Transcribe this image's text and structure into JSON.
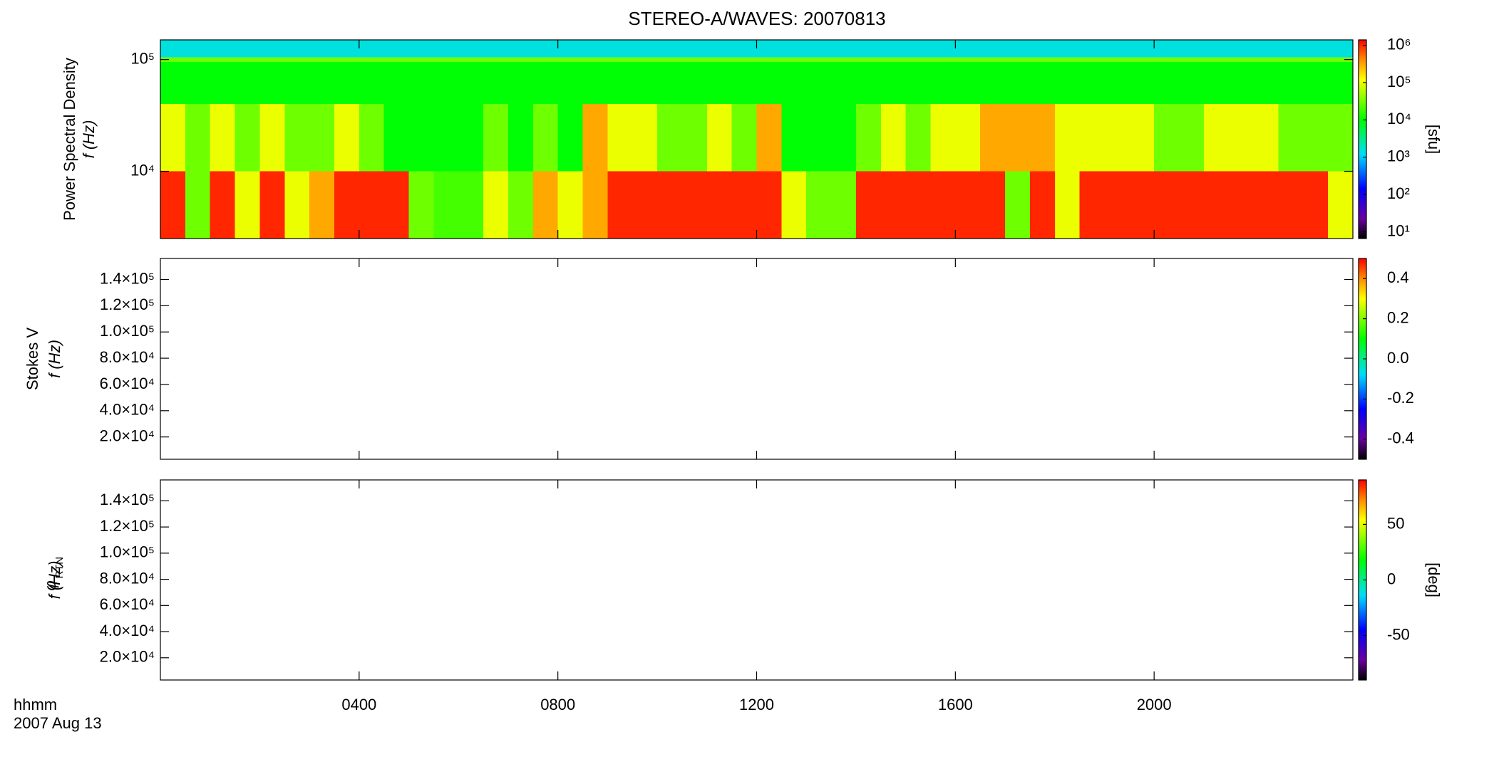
{
  "chart_data": {
    "type": "heatmap",
    "title": "STEREO-A/WAVES: 20070813",
    "x_label": "hhmm",
    "date_label": "2007 Aug 13",
    "xlim": [
      0,
      24
    ],
    "xticks": [
      {
        "value": 4,
        "label": "0400"
      },
      {
        "value": 8,
        "label": "0800"
      },
      {
        "value": 12,
        "label": "1200"
      },
      {
        "value": 16,
        "label": "1600"
      },
      {
        "value": 20,
        "label": "2000"
      }
    ],
    "panels": [
      {
        "type": "heatmap",
        "ylabel": "Power Spectral Density",
        "ylabel2": "f (Hz)",
        "ylog": true,
        "ylim": [
          2500,
          150000
        ],
        "yticks": [
          {
            "value": 10000,
            "label": "10⁴"
          },
          {
            "value": 100000,
            "label": "10⁵"
          }
        ],
        "xbins": [
          0,
          0.5,
          1,
          1.5,
          2,
          2.5,
          3,
          3.5,
          4,
          4.5,
          5,
          5.5,
          6,
          6.5,
          7,
          7.5,
          8,
          8.5,
          9,
          9.5,
          10,
          10.5,
          11,
          11.5,
          12,
          12.5,
          13,
          13.5,
          14,
          14.5,
          15,
          15.5,
          16,
          16.5,
          17,
          17.5,
          18,
          18.5,
          19,
          19.5,
          20,
          20.5,
          21,
          21.5,
          22,
          22.5,
          23,
          23.5,
          24
        ],
        "ybins": [
          2500,
          10000,
          40000,
          95000,
          105000,
          150000
        ],
        "z": [
          [
            1000000,
            30000,
            1000000,
            100000,
            1000000,
            100000,
            300000,
            1000000,
            1000000,
            1000000,
            30000,
            20000,
            20000,
            100000,
            30000,
            300000,
            100000,
            300000,
            1000000,
            1000000,
            1000000,
            1000000,
            1000000,
            1000000,
            1000000,
            100000,
            30000,
            30000,
            1000000,
            1000000,
            1000000,
            1000000,
            1000000,
            1000000,
            30000,
            1000000,
            100000,
            1000000,
            1000000,
            1000000,
            1000000,
            1000000,
            1000000,
            1000000,
            1000000,
            1000000,
            1000000,
            100000
          ],
          [
            100000,
            30000,
            100000,
            30000,
            100000,
            30000,
            30000,
            100000,
            30000,
            10000,
            10000,
            10000,
            10000,
            30000,
            10000,
            30000,
            10000,
            300000,
            100000,
            100000,
            30000,
            30000,
            100000,
            30000,
            300000,
            10000,
            10000,
            10000,
            30000,
            100000,
            30000,
            100000,
            100000,
            300000,
            300000,
            300000,
            100000,
            100000,
            100000,
            100000,
            30000,
            30000,
            100000,
            100000,
            100000,
            30000,
            30000,
            30000
          ],
          [
            10000,
            10000,
            10000,
            10000,
            10000,
            10000,
            10000,
            10000,
            10000,
            10000,
            10000,
            10000,
            10000,
            10000,
            10000,
            10000,
            10000,
            10000,
            10000,
            10000,
            10000,
            10000,
            10000,
            10000,
            10000,
            10000,
            10000,
            10000,
            10000,
            10000,
            10000,
            10000,
            10000,
            10000,
            10000,
            10000,
            10000,
            10000,
            10000,
            10000,
            10000,
            10000,
            10000,
            10000,
            10000,
            10000,
            10000,
            10000
          ],
          [
            30000,
            30000,
            30000,
            30000,
            30000,
            30000,
            30000,
            30000,
            30000,
            30000,
            30000,
            30000,
            30000,
            30000,
            30000,
            30000,
            30000,
            30000,
            30000,
            30000,
            30000,
            30000,
            30000,
            30000,
            30000,
            30000,
            30000,
            30000,
            30000,
            30000,
            30000,
            30000,
            30000,
            30000,
            30000,
            30000,
            30000,
            30000,
            30000,
            30000,
            30000,
            30000,
            30000,
            30000,
            30000,
            30000,
            30000,
            30000
          ],
          [
            1500,
            1500,
            1500,
            1500,
            1500,
            1500,
            1500,
            1500,
            1500,
            1500,
            1500,
            1500,
            1500,
            1500,
            1500,
            1500,
            1500,
            1500,
            1500,
            1500,
            1500,
            1500,
            1500,
            1500,
            1500,
            1500,
            1500,
            1500,
            1500,
            1500,
            1500,
            1500,
            1500,
            1500,
            1500,
            1500,
            1500,
            1500,
            1500,
            1500,
            1500,
            1500,
            1500,
            1500,
            1500,
            1500,
            1500,
            1500
          ]
        ],
        "zlog": true,
        "zlim": [
          6.6,
          1400000
        ],
        "zticks": [
          {
            "value": 10,
            "label": "10¹"
          },
          {
            "value": 100,
            "label": "10²"
          },
          {
            "value": 1000,
            "label": "10³"
          },
          {
            "value": 10000,
            "label": "10⁴"
          },
          {
            "value": 100000,
            "label": "10⁵"
          },
          {
            "value": 1000000,
            "label": "10⁶"
          }
        ],
        "zlabel": "[sfu]"
      },
      {
        "type": "heatmap",
        "ylabel": "Stokes V",
        "ylabel2": "f (Hz)",
        "ylog": false,
        "ylim": [
          3000,
          156000
        ],
        "yticks": [
          {
            "value": 20000,
            "label": "2.0×10⁴"
          },
          {
            "value": 40000,
            "label": "4.0×10⁴"
          },
          {
            "value": 60000,
            "label": "6.0×10⁴"
          },
          {
            "value": 80000,
            "label": "8.0×10⁴"
          },
          {
            "value": 100000,
            "label": "1.0×10⁵"
          },
          {
            "value": 120000,
            "label": "1.2×10⁵"
          },
          {
            "value": 140000,
            "label": "1.4×10⁵"
          }
        ],
        "zlog": false,
        "zlim": [
          -0.5,
          0.5
        ],
        "zticks": [
          -0.4,
          -0.2,
          {
            "value": 0,
            "label": "0.0"
          },
          0.2,
          0.4
        ]
      },
      {
        "type": "heatmap",
        "ylabel": "φ",
        "ylabel_sub": "RTN",
        "ylabel2": "f (Hz)",
        "ylog": false,
        "ylim": [
          3000,
          156000
        ],
        "yticks": [
          {
            "value": 20000,
            "label": "2.0×10⁴"
          },
          {
            "value": 40000,
            "label": "4.0×10⁴"
          },
          {
            "value": 60000,
            "label": "6.0×10⁴"
          },
          {
            "value": 80000,
            "label": "8.0×10⁴"
          },
          {
            "value": 100000,
            "label": "1.0×10⁵"
          },
          {
            "value": 120000,
            "label": "1.2×10⁵"
          },
          {
            "value": 140000,
            "label": "1.4×10⁵"
          }
        ],
        "zlog": false,
        "zlim": [
          -90,
          90
        ],
        "zticks": [
          -50,
          0,
          50
        ],
        "zlabel": "[deg]"
      }
    ]
  }
}
